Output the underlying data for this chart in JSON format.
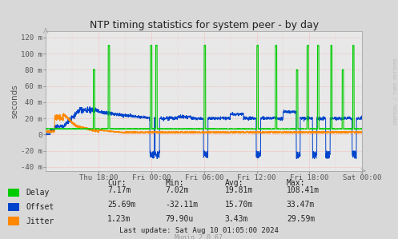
{
  "title": "NTP timing statistics for system peer - by day",
  "ylabel": "seconds",
  "background_color": "#d8d8d8",
  "plot_bg_color": "#e8e8e8",
  "grid_color_h": "#ff8888",
  "grid_color_v": "#ff8888",
  "x_tick_labels": [
    "Thu 18:00",
    "Fri 00:00",
    "Fri 06:00",
    "Fri 12:00",
    "Fri 18:00",
    "Sat 00:00"
  ],
  "y_tick_labels": [
    "-40 m",
    "-20 m",
    "0",
    "20 m",
    "40 m",
    "60 m",
    "80 m",
    "100 m",
    "120 m"
  ],
  "y_tick_values": [
    -40,
    -20,
    0,
    20,
    40,
    60,
    80,
    100,
    120
  ],
  "ylim": [
    -45,
    128
  ],
  "delay_color": "#00cc00",
  "offset_color": "#0044cc",
  "jitter_color": "#ff8800",
  "legend": [
    {
      "label": "Delay",
      "color": "#00cc00"
    },
    {
      "label": "Offset",
      "color": "#0044cc"
    },
    {
      "label": "Jitter",
      "color": "#ff8800"
    }
  ],
  "stats_header": [
    "Cur:",
    "Min:",
    "Avg:",
    "Max:"
  ],
  "stats_delay": [
    "7.17m",
    "7.02m",
    "19.81m",
    "108.41m"
  ],
  "stats_offset": [
    "25.69m",
    "-32.11m",
    "15.70m",
    "33.47m"
  ],
  "stats_jitter": [
    "1.23m",
    "79.90u",
    "3.43m",
    "29.59m"
  ],
  "last_update": "Last update: Sat Aug 10 01:05:00 2024",
  "munin_version": "Munin 2.0.67",
  "watermark": "RRDTOOL / TOBI OETIKER"
}
